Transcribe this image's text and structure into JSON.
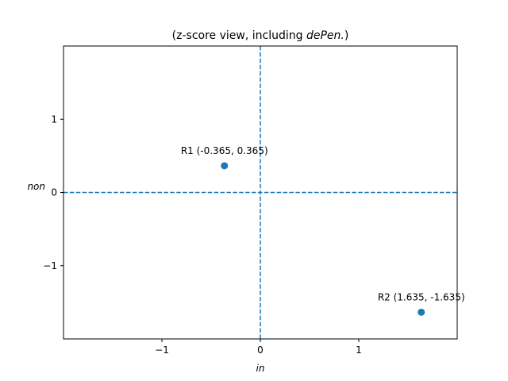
{
  "chart_data": {
    "type": "scatter",
    "title_prefix": "(z-score view, including ",
    "title_emph": "dePen.",
    "title_suffix": ")",
    "xlabel": "in",
    "ylabel": "non",
    "xlim": [
      -2,
      2
    ],
    "ylim": [
      -2,
      2
    ],
    "xticks": [
      -1,
      0,
      1
    ],
    "yticks": [
      -1,
      0,
      1
    ],
    "xtick_labels": [
      "−1",
      "0",
      "1"
    ],
    "ytick_labels": [
      "−1",
      "0",
      "1"
    ],
    "reference_lines": {
      "x": 0,
      "y": 0,
      "style": "dashed"
    },
    "points": [
      {
        "label": "R1 (-0.365, 0.365)",
        "x": -0.365,
        "y": 0.365
      },
      {
        "label": "R2 (1.635, -1.635)",
        "x": 1.635,
        "y": -1.635
      }
    ],
    "color": "#1f77b4",
    "grid": false
  }
}
